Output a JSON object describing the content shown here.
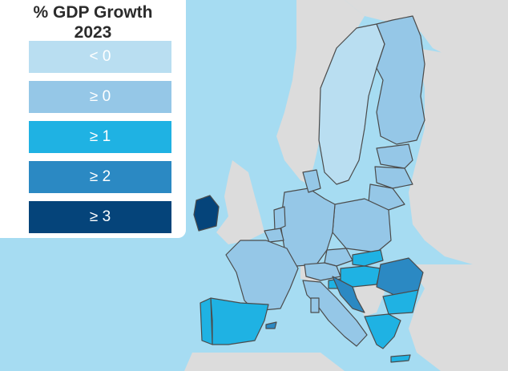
{
  "legend": {
    "title_line1": "% GDP Growth",
    "title_line2": "2023",
    "bins": [
      {
        "label": "< 0",
        "color": "#b9def1"
      },
      {
        "label": "≥ 0",
        "color": "#95c7e7"
      },
      {
        "label": "≥ 1",
        "color": "#1fb2e3"
      },
      {
        "label": "≥ 2",
        "color": "#2b89c3"
      },
      {
        "label": "≥ 3",
        "color": "#05447a"
      }
    ]
  },
  "colors": {
    "sea": "#a6dcf2",
    "non_eu_land": "#dcdcdc",
    "border": "#4b4b4b"
  },
  "regions": {
    "ireland": "≥ 3",
    "croatia": "≥ 2",
    "romania": "≥ 2",
    "spain": "≥ 1",
    "portugal": "≥ 1",
    "greece": "≥ 1",
    "bulgaria": "≥ 1",
    "slovenia": "≥ 1",
    "hungary": "≥ 1",
    "sweden": "< 0",
    "finland": "≥ 0",
    "germany": "≥ 0",
    "france": "≥ 0",
    "italy": "≥ 0",
    "poland": "≥ 0"
  }
}
